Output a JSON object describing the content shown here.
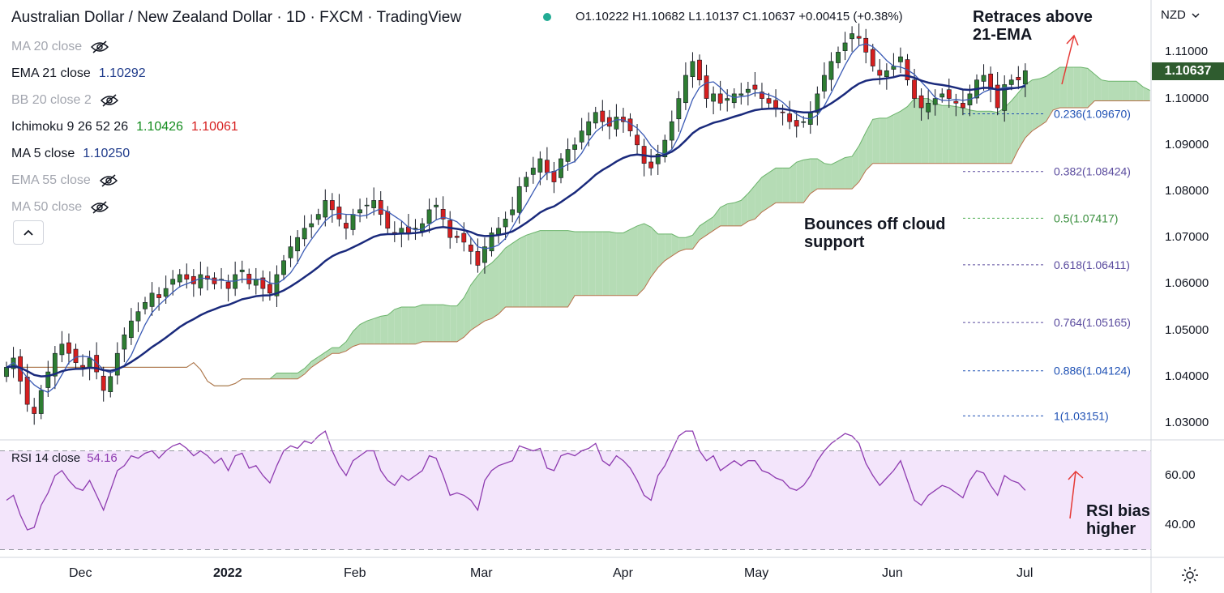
{
  "header": {
    "title": "Australian Dollar / New Zealand Dollar · 1D · FXCM · TradingView",
    "ohlc": "O1.10222  H1.10682  L1.10137  C1.10637  +0.00415 (+0.38%)"
  },
  "indicators": [
    {
      "label": "MA 20 close",
      "value": "",
      "hidden": true
    },
    {
      "label": "EMA 21 close",
      "value": "1.10292",
      "value2": "",
      "hidden": false,
      "color": "#1e3a8a"
    },
    {
      "label": "BB 20 close 2",
      "value": "",
      "hidden": true
    },
    {
      "label": "Ichimoku 9 26 52 26",
      "value": "1.10426",
      "value2": "1.10061",
      "hidden": false,
      "color": "#138c1e",
      "color2": "#d61f1f"
    },
    {
      "label": "MA 5 close",
      "value": "1.10250",
      "value2": "",
      "hidden": false,
      "color": "#1e3a8a"
    },
    {
      "label": "EMA 55 close",
      "value": "",
      "hidden": true
    },
    {
      "label": "MA 50 close",
      "value": "",
      "hidden": true
    }
  ],
  "collapse_icon": "chevron-up-icon",
  "currency": "NZD",
  "last_price": "1.10637",
  "annotations": {
    "retrace": "Retraces above\n21-EMA",
    "bounce": "Bounces off cloud\nsupport",
    "rsi": "RSI bias\nhigher"
  },
  "rsi_legend": {
    "label": "RSI 14 close",
    "value": "54.16"
  },
  "price_axis": [
    "1.11000",
    "1.10000",
    "1.09000",
    "1.08000",
    "1.07000",
    "1.06000",
    "1.05000",
    "1.04000",
    "1.03000"
  ],
  "rsi_axis": [
    "60.00",
    "40.00"
  ],
  "time_axis": [
    "Dec",
    "2022",
    "Feb",
    "Mar",
    "Apr",
    "May",
    "Jun",
    "Jul"
  ],
  "colors": {
    "up": "#2e7d32",
    "down": "#d61f1f",
    "ema21": "#1a2a7c",
    "ma5": "#3b5bb5",
    "cloud_bull": "#b5dcb5",
    "cloud_bear": "#f4a3a3",
    "rsi": "#8e3bb0",
    "rsi_bg": "#f3e5fb",
    "fib": "#5a4b9e"
  },
  "chart_data": {
    "type": "candlestick",
    "title": "Australian Dollar / New Zealand Dollar · 1D · FXCM",
    "ylim": [
      1.0274,
      1.1163
    ],
    "fibonacci": [
      {
        "ratio": "0.236",
        "price": 1.0967,
        "label": "0.236(1.09670)"
      },
      {
        "ratio": "0.382",
        "price": 1.08424,
        "label": "0.382(1.08424)"
      },
      {
        "ratio": "0.5",
        "price": 1.07417,
        "label": "0.5(1.07417)"
      },
      {
        "ratio": "0.618",
        "price": 1.06411,
        "label": "0.618(1.06411)"
      },
      {
        "ratio": "0.764",
        "price": 1.05165,
        "label": "0.764(1.05165)"
      },
      {
        "ratio": "0.886",
        "price": 1.04124,
        "label": "0.886(1.04124)"
      },
      {
        "ratio": "1",
        "price": 1.03151,
        "label": "1(1.03151)"
      }
    ],
    "months": [
      {
        "label": "Dec",
        "date": "2021-12-01"
      },
      {
        "label": "2022",
        "date": "2022-01-01"
      },
      {
        "label": "Feb",
        "date": "2022-02-01"
      },
      {
        "label": "Mar",
        "date": "2022-03-01"
      },
      {
        "label": "Apr",
        "date": "2022-04-01"
      },
      {
        "label": "May",
        "date": "2022-05-01"
      },
      {
        "label": "Jun",
        "date": "2022-06-01"
      },
      {
        "label": "Jul",
        "date": "2022-07-01"
      }
    ],
    "close": [
      1.042,
      1.044,
      1.039,
      1.034,
      1.032,
      1.037,
      1.041,
      1.045,
      1.047,
      1.045,
      1.043,
      1.042,
      1.044,
      1.041,
      1.037,
      1.04,
      1.045,
      1.049,
      1.052,
      1.054,
      1.056,
      1.058,
      1.057,
      1.059,
      1.061,
      1.062,
      1.061,
      1.06,
      1.062,
      1.061,
      1.06,
      1.061,
      1.059,
      1.062,
      1.063,
      1.06,
      1.061,
      1.059,
      1.058,
      1.062,
      1.065,
      1.068,
      1.07,
      1.072,
      1.073,
      1.075,
      1.078,
      1.076,
      1.074,
      1.072,
      1.075,
      1.076,
      1.077,
      1.078,
      1.075,
      1.072,
      1.071,
      1.072,
      1.071,
      1.072,
      1.073,
      1.076,
      1.077,
      1.074,
      1.07,
      1.07,
      1.069,
      1.067,
      1.064,
      1.068,
      1.071,
      1.072,
      1.074,
      1.076,
      1.081,
      1.083,
      1.085,
      1.087,
      1.084,
      1.082,
      1.087,
      1.089,
      1.09,
      1.093,
      1.095,
      1.097,
      1.095,
      1.094,
      1.096,
      1.095,
      1.093,
      1.09,
      1.086,
      1.085,
      1.088,
      1.091,
      1.095,
      1.1,
      1.105,
      1.108,
      1.104,
      1.1,
      1.101,
      1.099,
      1.1,
      1.101,
      1.101,
      1.102,
      1.102,
      1.1,
      1.099,
      1.098,
      1.097,
      1.095,
      1.094,
      1.095,
      1.097,
      1.101,
      1.105,
      1.108,
      1.11,
      1.112,
      1.114,
      1.113,
      1.11,
      1.107,
      1.105,
      1.106,
      1.107,
      1.109,
      1.104,
      1.1,
      1.098,
      1.099,
      1.1,
      1.101,
      1.1,
      1.099,
      1.098,
      1.101,
      1.104,
      1.105,
      1.102,
      1.098,
      1.103,
      1.104,
      1.104,
      1.106
    ],
    "rsi": [
      50,
      52,
      44,
      38,
      39,
      48,
      53,
      60,
      62,
      58,
      55,
      54,
      58,
      52,
      46,
      54,
      62,
      64,
      68,
      67,
      69,
      70,
      67,
      70,
      72,
      73,
      71,
      68,
      70,
      68,
      65,
      67,
      62,
      68,
      69,
      63,
      64,
      60,
      57,
      64,
      70,
      72,
      71,
      74,
      73,
      76,
      78,
      70,
      64,
      60,
      66,
      68,
      70,
      70,
      62,
      58,
      56,
      60,
      58,
      60,
      62,
      68,
      67,
      60,
      52,
      53,
      52,
      50,
      46,
      58,
      62,
      64,
      65,
      66,
      72,
      71,
      70,
      71,
      63,
      62,
      68,
      69,
      68,
      70,
      71,
      73,
      66,
      64,
      68,
      66,
      63,
      58,
      52,
      50,
      60,
      64,
      70,
      76,
      78,
      78,
      70,
      66,
      68,
      62,
      64,
      66,
      64,
      66,
      66,
      62,
      61,
      59,
      58,
      55,
      54,
      56,
      60,
      66,
      70,
      73,
      75,
      77,
      76,
      73,
      65,
      60,
      56,
      59,
      62,
      66,
      58,
      50,
      48,
      52,
      54,
      56,
      55,
      53,
      51,
      58,
      62,
      61,
      56,
      52,
      60,
      58,
      57,
      54
    ]
  }
}
